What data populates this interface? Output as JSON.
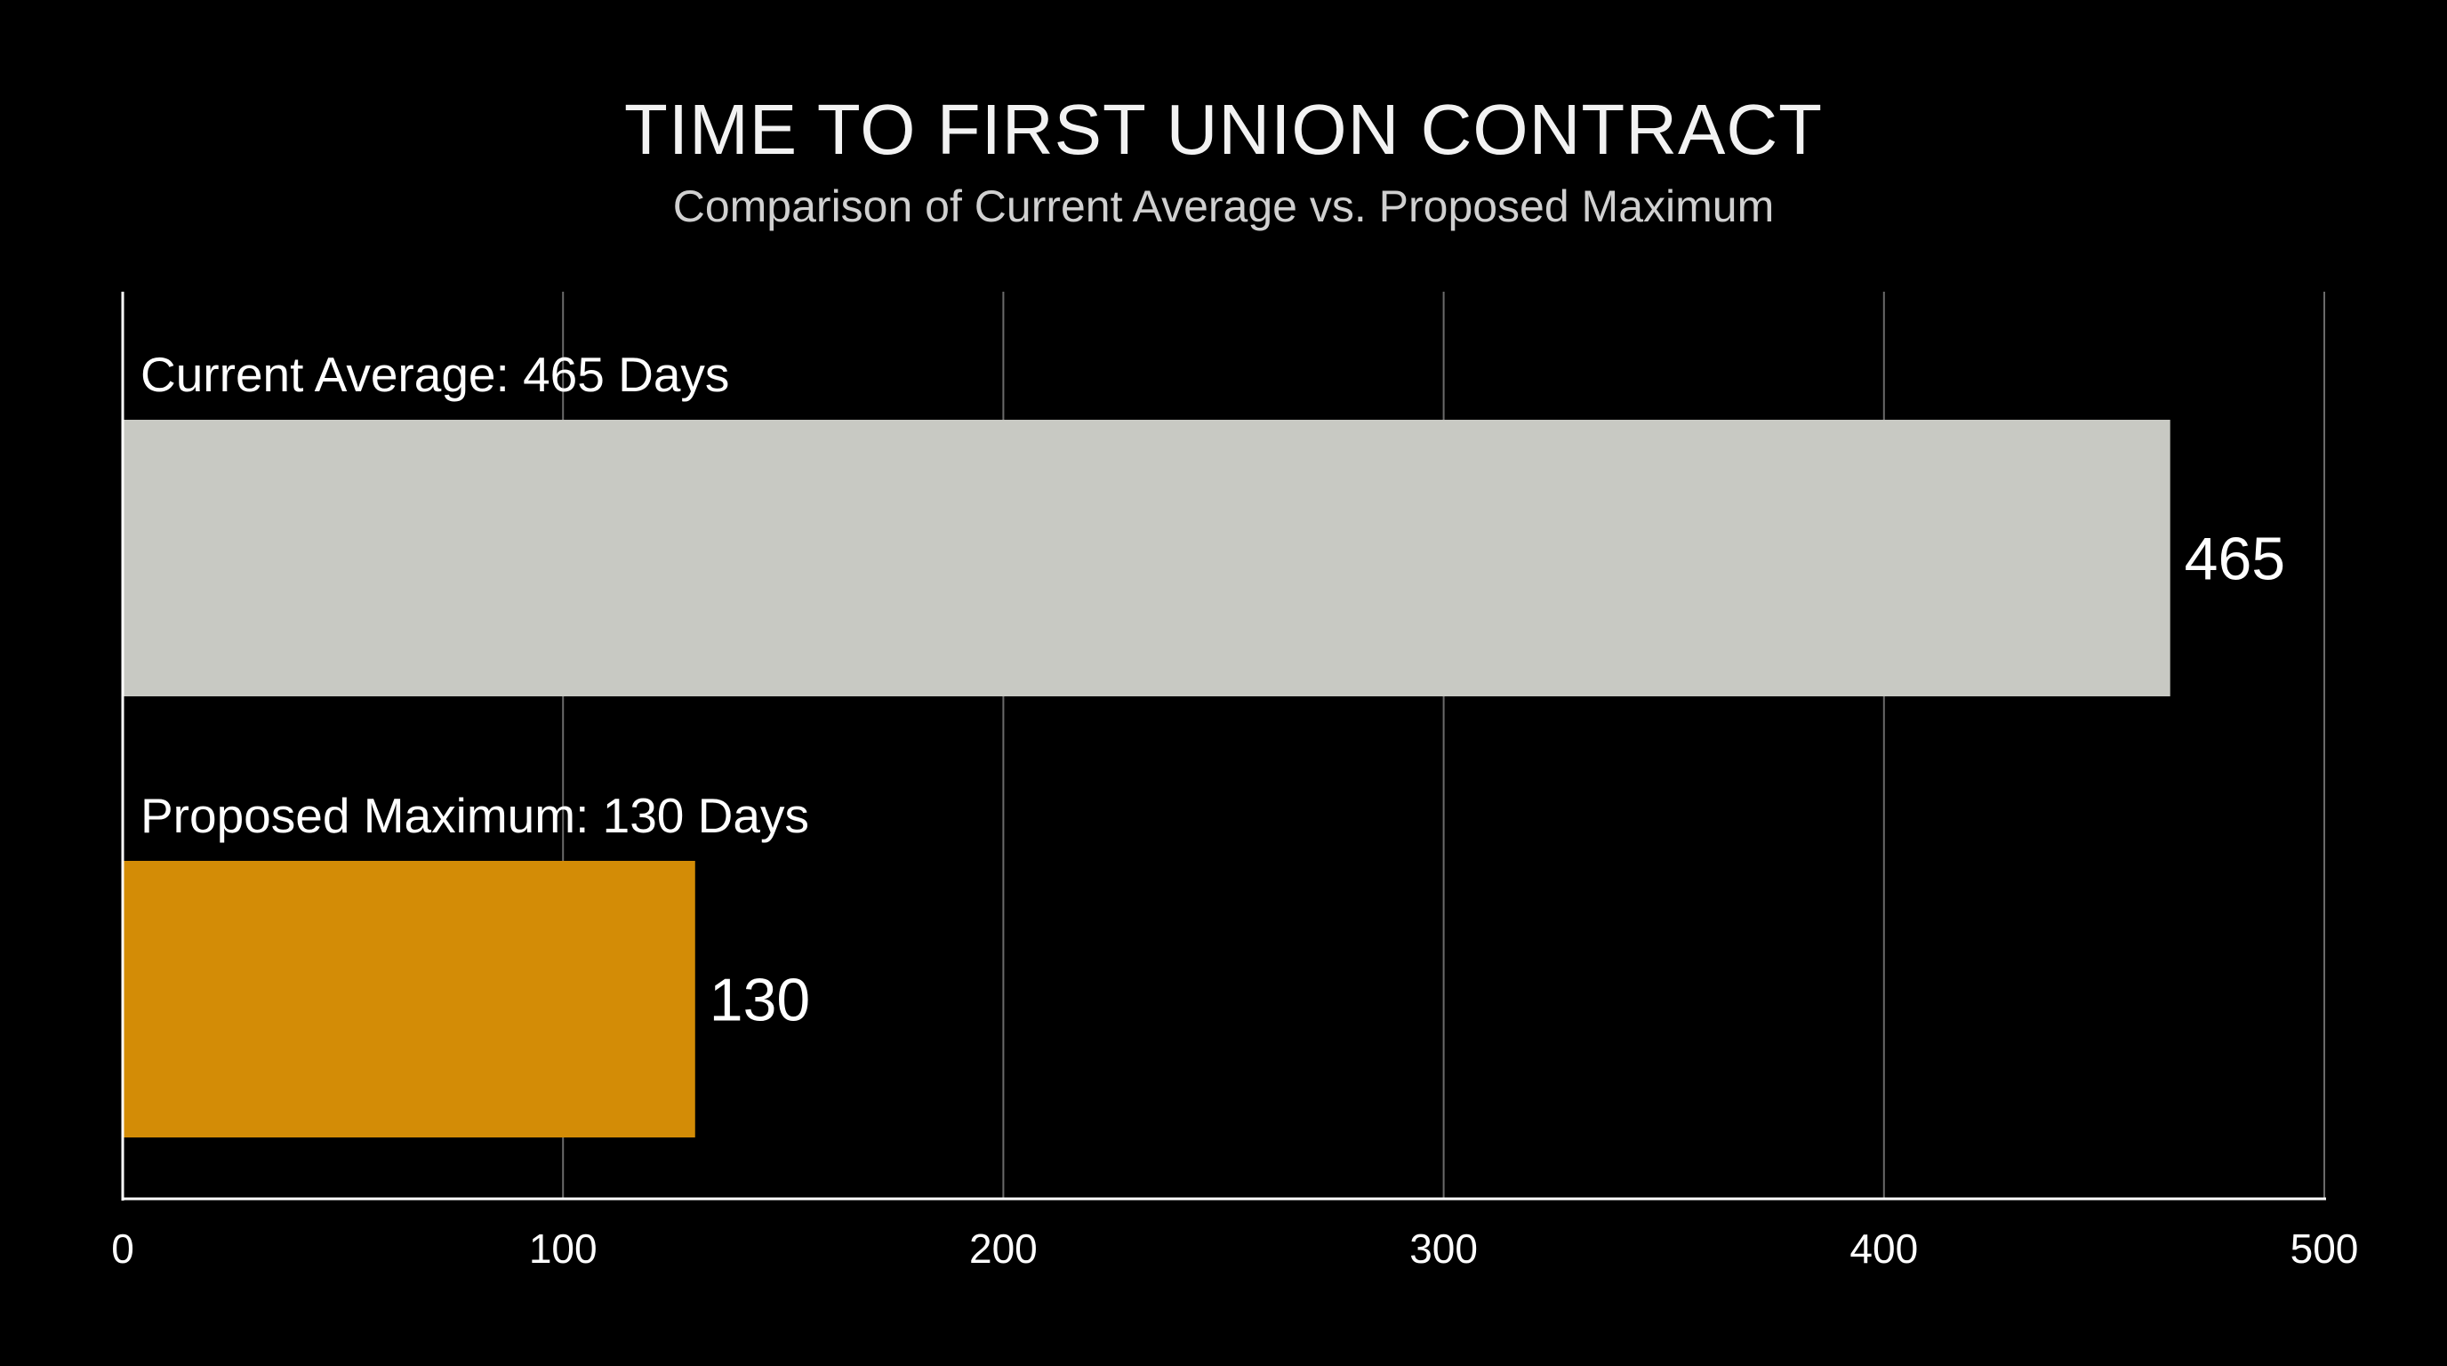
{
  "chart_data": {
    "type": "bar",
    "orientation": "horizontal",
    "title": "TIME TO FIRST UNION CONTRACT",
    "subtitle": "Comparison of Current Average vs. Proposed Maximum",
    "categories": [
      "Current Average",
      "Proposed Maximum"
    ],
    "bar_labels": [
      "Current Average: 465 Days",
      "Proposed Maximum: 130 Days"
    ],
    "values": [
      465,
      130
    ],
    "value_labels": [
      "465",
      "130"
    ],
    "colors": [
      "#c8c9c3",
      "#d38c06"
    ],
    "xlim": [
      0,
      500
    ],
    "x_ticks": [
      0,
      100,
      200,
      300,
      400,
      500
    ],
    "x_tick_labels": [
      "0",
      "100",
      "200",
      "300",
      "400",
      "500"
    ],
    "grid": "vertical",
    "background": "#000000",
    "xlabel": "",
    "ylabel": ""
  }
}
